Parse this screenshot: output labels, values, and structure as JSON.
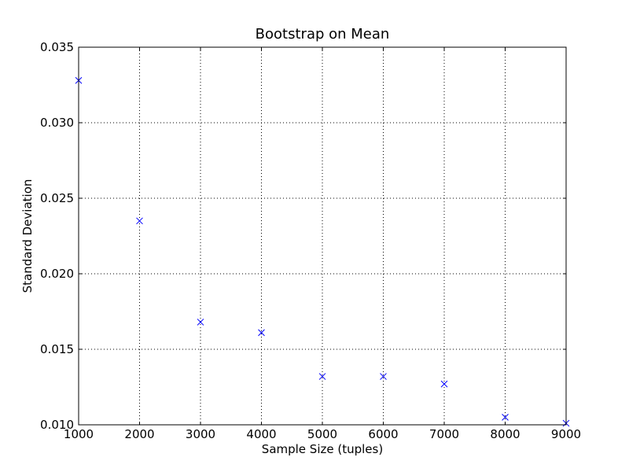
{
  "chart_data": {
    "type": "scatter",
    "title": "Bootstrap on Mean",
    "xlabel": "Sample Size (tuples)",
    "ylabel": "Standard Deviation",
    "xlim": [
      1000,
      9000
    ],
    "ylim": [
      0.01,
      0.035
    ],
    "x_ticks": [
      "1000",
      "2000",
      "3000",
      "4000",
      "5000",
      "6000",
      "7000",
      "8000",
      "9000"
    ],
    "y_ticks": [
      "0.010",
      "0.015",
      "0.020",
      "0.025",
      "0.030",
      "0.035"
    ],
    "grid": true,
    "marker": "x",
    "color": "#0000ff",
    "series": [
      {
        "x": [
          1000,
          2000,
          3000,
          4000,
          5000,
          6000,
          7000,
          8000,
          9000
        ],
        "y": [
          0.0328,
          0.0235,
          0.0168,
          0.0161,
          0.0132,
          0.0132,
          0.0127,
          0.0105,
          0.0101
        ]
      }
    ]
  }
}
